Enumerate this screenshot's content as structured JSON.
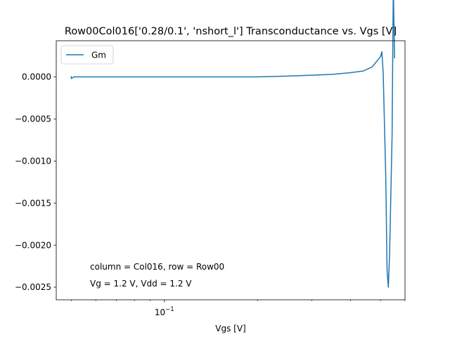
{
  "chart_data": {
    "type": "line",
    "title": "Row00Col016['0.28/0.1', 'nshort_l'] Transconductance vs. Vgs [V]",
    "xlabel": "Vgs [V]",
    "ylabel": "",
    "xscale": "log",
    "xlim": [
      0.0447,
      0.6
    ],
    "ylim": [
      -0.00265,
      0.00043
    ],
    "grid": false,
    "legend": {
      "placement": "top-left",
      "entries": [
        "Gm"
      ]
    },
    "x_ticks": [
      {
        "value": 0.1,
        "label": "10^-1"
      }
    ],
    "x_minor_ticks": [
      0.05,
      0.06,
      0.07,
      0.08,
      0.09,
      0.2,
      0.3,
      0.4,
      0.5,
      0.6
    ],
    "y_ticks": [
      {
        "value": 0.0,
        "label": "0.0000"
      },
      {
        "value": -0.0005,
        "label": "−0.0005"
      },
      {
        "value": -0.001,
        "label": "−0.0010"
      },
      {
        "value": -0.0015,
        "label": "−0.0015"
      },
      {
        "value": -0.002,
        "label": "−0.0020"
      },
      {
        "value": -0.0025,
        "label": "−0.0025"
      }
    ],
    "annotations": [
      "column = Col016, row = Row00",
      "Vg = 1.2 V, Vdd = 1.2 V"
    ],
    "series": [
      {
        "name": "Gm",
        "color": "#1f77b4",
        "x": [
          0.05,
          0.05,
          0.051,
          0.06,
          0.1,
          0.2,
          0.25,
          0.3,
          0.35,
          0.4,
          0.44,
          0.47,
          0.5,
          0.505,
          0.51,
          0.52,
          0.525,
          0.53,
          0.535,
          0.545,
          0.55,
          0.555
        ],
        "y": [
          1e-05,
          -2e-05,
          0.0,
          0.0,
          0.0,
          0.0,
          1e-05,
          2e-05,
          3e-05,
          5e-05,
          7e-05,
          0.00012,
          0.00024,
          0.0003,
          5e-05,
          -0.0012,
          -0.0023,
          -0.0025,
          -0.0021,
          -0.0007,
          0.0011,
          0.00022
        ]
      }
    ]
  }
}
